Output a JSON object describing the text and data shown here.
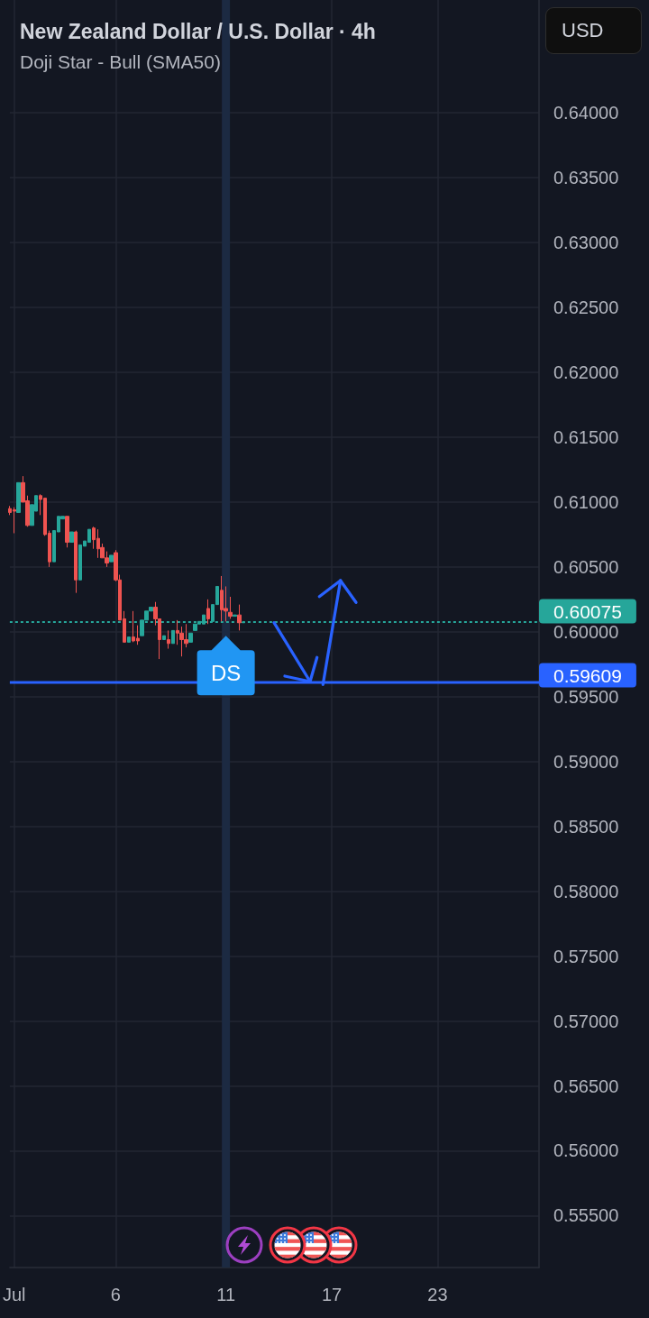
{
  "chart_data": {
    "type": "candlestick",
    "title": "New Zealand Dollar / U.S. Dollar · 4h",
    "subtitle": "Doji Star - Bull (SMA50)",
    "ylabel": "USD",
    "categories": [
      null,
      "Jul",
      null,
      null,
      null,
      null,
      null,
      null,
      null,
      null,
      null,
      null,
      null,
      null,
      null,
      null,
      null,
      null,
      null,
      null,
      null,
      null,
      null,
      null,
      "6",
      null,
      null,
      null,
      null,
      null,
      null,
      null,
      null,
      null,
      null,
      null,
      null,
      null,
      null,
      null,
      null,
      null,
      null,
      null,
      null,
      null,
      null,
      null,
      null,
      "11",
      null,
      null,
      null,
      null,
      null,
      null,
      null,
      null,
      null,
      null,
      null,
      null,
      null,
      null,
      null,
      null,
      null,
      null,
      null,
      null,
      null,
      null,
      null,
      "17",
      null,
      null,
      null,
      null,
      null,
      null,
      null,
      null,
      null,
      null,
      null,
      null,
      null,
      null,
      null,
      null,
      null,
      null,
      null,
      null,
      null,
      null,
      null,
      "23",
      null,
      null,
      null,
      null,
      null,
      null,
      null,
      null,
      null,
      null,
      null,
      null,
      null,
      null,
      null,
      null,
      null,
      null,
      null,
      null,
      null,
      null,
      null
    ],
    "ohlc": [
      [
        0.6095,
        0.6097,
        0.609,
        0.6092
      ],
      [
        0.6094,
        0.6096,
        0.6076,
        0.6093
      ],
      [
        0.6092,
        0.6115,
        0.6092,
        0.6115
      ],
      [
        0.6115,
        0.612,
        0.61,
        0.61
      ],
      [
        0.6101,
        0.6105,
        0.6081,
        0.6082
      ],
      [
        0.6082,
        0.6098,
        0.6082,
        0.6098
      ],
      [
        0.6093,
        0.6105,
        0.6093,
        0.6105
      ],
      [
        0.6105,
        0.6106,
        0.609,
        0.6102
      ],
      [
        0.6103,
        0.6103,
        0.6074,
        0.6075
      ],
      [
        0.6076,
        0.6078,
        0.605,
        0.6054
      ],
      [
        0.6054,
        0.6078,
        0.6054,
        0.6078
      ],
      [
        0.6077,
        0.6089,
        0.6077,
        0.6089
      ],
      [
        0.6087,
        0.6089,
        0.6087,
        0.6089
      ],
      [
        0.6089,
        0.6089,
        0.6065,
        0.6069
      ],
      [
        0.6069,
        0.6077,
        0.6069,
        0.6077
      ],
      [
        0.6077,
        0.6078,
        0.603,
        0.604
      ],
      [
        0.604,
        0.6067,
        0.604,
        0.6067
      ],
      [
        0.6066,
        0.607,
        0.6066,
        0.607
      ],
      [
        0.6069,
        0.6079,
        0.6069,
        0.6079
      ],
      [
        0.608,
        0.6081,
        0.6064,
        0.6071
      ],
      [
        0.6072,
        0.6079,
        0.6057,
        0.6064
      ],
      [
        0.6065,
        0.6068,
        0.6057,
        0.6057
      ],
      [
        0.6057,
        0.6062,
        0.605,
        0.6053
      ],
      [
        0.6054,
        0.6059,
        0.6054,
        0.6059
      ],
      [
        0.6061,
        0.6063,
        0.6039,
        0.604
      ],
      [
        0.604,
        0.6044,
        0.6009,
        0.6009
      ],
      [
        0.601,
        0.6016,
        0.5992,
        0.5992
      ],
      [
        0.5992,
        0.5996,
        0.5992,
        0.5996
      ],
      [
        0.5996,
        0.6016,
        0.5992,
        0.5993
      ],
      [
        0.5995,
        0.6005,
        0.599,
        0.5993
      ],
      [
        0.5997,
        0.6009,
        0.5997,
        0.6009
      ],
      [
        0.6009,
        0.6016,
        0.6009,
        0.6016
      ],
      [
        0.6016,
        0.6019,
        0.6016,
        0.6019
      ],
      [
        0.6019,
        0.6023,
        0.6005,
        0.601
      ],
      [
        0.601,
        0.601,
        0.5979,
        0.5994
      ],
      [
        0.5994,
        0.5997,
        0.5994,
        0.5997
      ],
      [
        0.5994,
        0.6001,
        0.5987,
        0.5991
      ],
      [
        0.5991,
        0.6001,
        0.5991,
        0.6001
      ],
      [
        0.6001,
        0.6009,
        0.599,
        0.5999
      ],
      [
        0.5999,
        0.6004,
        0.5981,
        0.5994
      ],
      [
        0.5994,
        0.6006,
        0.5988,
        0.5991
      ],
      [
        0.5992,
        0.5999,
        0.5992,
        0.5999
      ],
      [
        0.6001,
        0.6006,
        0.6001,
        0.6006
      ],
      [
        0.6006,
        0.6008,
        0.6006,
        0.6008
      ],
      [
        0.6006,
        0.6013,
        0.6006,
        0.6013
      ],
      [
        0.6018,
        0.6025,
        0.6006,
        0.601
      ],
      [
        0.6008,
        0.6021,
        0.6008,
        0.6021
      ],
      [
        0.6021,
        0.6035,
        0.6021,
        0.6035
      ],
      [
        0.6032,
        0.6043,
        0.6008,
        0.6017
      ],
      [
        0.6018,
        0.6035,
        0.6008,
        0.6016
      ],
      [
        0.6015,
        0.6027,
        0.601,
        0.6012
      ],
      [
        0.6012,
        0.6013,
        0.6012,
        0.6013
      ],
      [
        0.6013,
        0.6021,
        0.6001,
        0.6007
      ],
      [
        0.6007,
        0.60075,
        0.6007,
        0.60075
      ],
      null,
      null,
      null,
      null,
      null,
      null,
      null,
      null,
      null,
      null,
      null,
      null,
      null,
      null,
      null,
      null,
      null,
      null,
      null,
      null,
      null,
      null,
      null,
      null,
      null,
      null,
      null,
      null,
      null,
      null,
      null,
      null,
      null,
      null,
      null,
      null,
      null,
      null,
      null,
      null,
      null,
      null,
      null,
      null,
      null,
      null,
      null,
      null,
      null,
      null,
      null,
      null,
      null,
      null,
      null,
      null,
      null,
      null,
      null,
      null,
      null,
      null,
      null,
      null,
      null,
      null,
      null
    ],
    "colors": [
      "#ef5350",
      "#ef5350",
      "#26a69a",
      "#ef5350",
      "#ef5350",
      "#26a69a",
      "#26a69a",
      "#ef5350",
      "#ef5350",
      "#ef5350",
      "#26a69a",
      "#26a69a",
      "#26a69a",
      "#ef5350",
      "#26a69a",
      "#ef5350",
      "#26a69a",
      "#26a69a",
      "#26a69a",
      "#ef5350",
      "#ef5350",
      "#ef5350",
      "#ef5350",
      "#26a69a",
      "#ef5350",
      "#ef5350",
      "#ef5350",
      "#26a69a",
      "#ef5350",
      "#ef5350",
      "#26a69a",
      "#26a69a",
      "#26a69a",
      "#ef5350",
      "#ef5350",
      "#26a69a",
      "#ef5350",
      "#26a69a",
      "#ef5350",
      "#ef5350",
      "#ef5350",
      "#26a69a",
      "#26a69a",
      "#26a69a",
      "#26a69a",
      "#ef5350",
      "#26a69a",
      "#26a69a",
      "#ef5350",
      "#ef5350",
      "#ef5350",
      "#26a69a",
      "#ef5350",
      "#26a69a",
      null,
      null,
      null,
      null,
      null,
      null,
      null,
      null,
      null,
      null,
      null,
      null,
      null,
      null,
      null,
      null,
      null,
      null,
      null,
      null,
      null,
      null,
      null,
      null,
      null,
      null,
      null,
      null,
      null,
      null,
      null,
      null,
      null,
      null,
      null,
      null,
      null,
      null,
      null,
      null,
      null,
      null,
      null,
      null,
      null,
      null,
      null,
      null,
      null,
      null,
      null,
      null,
      null,
      null,
      null,
      null,
      null,
      null,
      null,
      null,
      null,
      null,
      null,
      null,
      null,
      null,
      null
    ],
    "ylim": [
      0.551,
      0.6487
    ],
    "yticks": [
      {
        "value": 0.555,
        "label": "0.55500"
      },
      {
        "value": 0.56,
        "label": "0.56000"
      },
      {
        "value": 0.565,
        "label": "0.56500"
      },
      {
        "value": 0.57,
        "label": "0.57000"
      },
      {
        "value": 0.575,
        "label": "0.57500"
      },
      {
        "value": 0.58,
        "label": "0.58000"
      },
      {
        "value": 0.585,
        "label": "0.58500"
      },
      {
        "value": 0.59,
        "label": "0.59000"
      },
      {
        "value": 0.595,
        "label": "0.59500"
      },
      {
        "value": 0.6,
        "label": "0.60000"
      },
      {
        "value": 0.605,
        "label": "0.60500"
      },
      {
        "value": 0.61,
        "label": "0.61000"
      },
      {
        "value": 0.615,
        "label": "0.61500"
      },
      {
        "value": 0.62,
        "label": "0.62000"
      },
      {
        "value": 0.625,
        "label": "0.62500"
      },
      {
        "value": 0.63,
        "label": "0.63000"
      },
      {
        "value": 0.635,
        "label": "0.63500"
      },
      {
        "value": 0.64,
        "label": "0.64000"
      }
    ],
    "grid": true,
    "ref_lines": [
      {
        "axis": "x",
        "value": "11",
        "color": "#1c2a42"
      },
      {
        "axis": "y",
        "value": 0.60075,
        "label": "0.60075",
        "color": "#26a69a",
        "line_style": "dotted"
      },
      {
        "axis": "y",
        "value": 0.59609,
        "label": "0.59609",
        "color": "#2962ff",
        "line_style": "solid"
      }
    ],
    "annotations": [
      {
        "text": "DS",
        "x": "11",
        "y": 0.6008
      }
    ]
  }
}
